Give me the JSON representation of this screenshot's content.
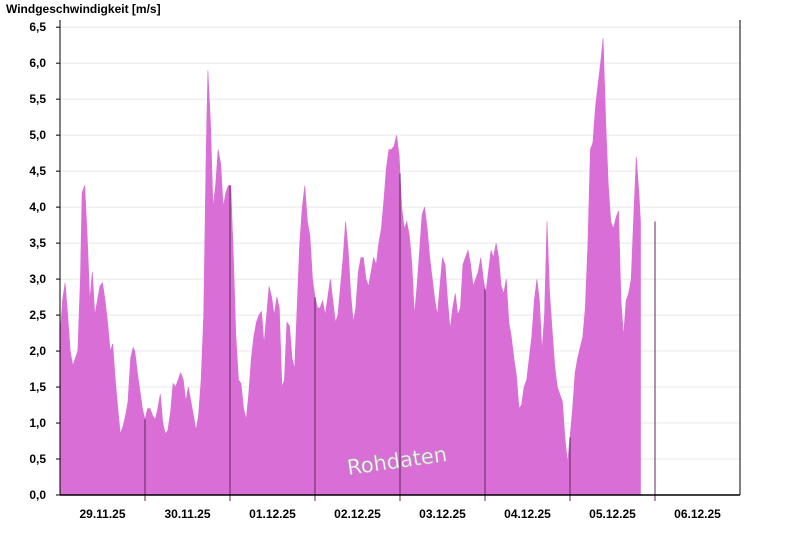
{
  "chart_data": {
    "type": "area",
    "title": "Windgeschwindigkeit [m/s]",
    "watermark": "Rohdaten",
    "fill_color": "#d96fd6",
    "grid_color": "#e8e8e8",
    "ylim": [
      0,
      6.6
    ],
    "y_ticks": [
      {
        "value": 0,
        "label": "0,0"
      },
      {
        "value": 0.5,
        "label": "0,5"
      },
      {
        "value": 1.0,
        "label": "1,0"
      },
      {
        "value": 1.5,
        "label": "1,5"
      },
      {
        "value": 2.0,
        "label": "2,0"
      },
      {
        "value": 2.5,
        "label": "2,5"
      },
      {
        "value": 3.0,
        "label": "3,0"
      },
      {
        "value": 3.5,
        "label": "3,5"
      },
      {
        "value": 4.0,
        "label": "4,0"
      },
      {
        "value": 4.5,
        "label": "4,5"
      },
      {
        "value": 5.0,
        "label": "5,0"
      },
      {
        "value": 5.5,
        "label": "5,5"
      },
      {
        "value": 6.0,
        "label": "6,0"
      },
      {
        "value": 6.5,
        "label": "6,5"
      }
    ],
    "days": [
      "29.11.25",
      "30.11.25",
      "01.12.25",
      "02.12.25",
      "03.12.25",
      "04.12.25",
      "05.12.25",
      "06.12.25"
    ],
    "x_range": [
      0,
      8
    ],
    "points": [
      [
        0.0,
        2.2
      ],
      [
        0.03,
        2.7
      ],
      [
        0.06,
        2.95
      ],
      [
        0.09,
        2.5
      ],
      [
        0.12,
        2.0
      ],
      [
        0.15,
        1.8
      ],
      [
        0.18,
        1.9
      ],
      [
        0.21,
        2.0
      ],
      [
        0.24,
        3.0
      ],
      [
        0.26,
        4.2
      ],
      [
        0.29,
        4.3
      ],
      [
        0.32,
        3.6
      ],
      [
        0.35,
        2.7
      ],
      [
        0.38,
        3.1
      ],
      [
        0.41,
        2.5
      ],
      [
        0.44,
        2.7
      ],
      [
        0.47,
        2.9
      ],
      [
        0.5,
        2.95
      ],
      [
        0.53,
        2.7
      ],
      [
        0.56,
        2.4
      ],
      [
        0.59,
        2.0
      ],
      [
        0.62,
        2.1
      ],
      [
        0.65,
        1.6
      ],
      [
        0.68,
        1.2
      ],
      [
        0.71,
        0.85
      ],
      [
        0.74,
        0.95
      ],
      [
        0.77,
        1.1
      ],
      [
        0.8,
        1.3
      ],
      [
        0.83,
        1.9
      ],
      [
        0.86,
        2.05
      ],
      [
        0.88,
        2.0
      ],
      [
        0.91,
        1.7
      ],
      [
        0.94,
        1.45
      ],
      [
        0.97,
        1.2
      ],
      [
        1.0,
        1.05
      ],
      [
        1.03,
        1.2
      ],
      [
        1.06,
        1.2
      ],
      [
        1.09,
        1.1
      ],
      [
        1.12,
        1.05
      ],
      [
        1.15,
        1.2
      ],
      [
        1.18,
        1.4
      ],
      [
        1.21,
        1.0
      ],
      [
        1.24,
        0.85
      ],
      [
        1.27,
        0.9
      ],
      [
        1.3,
        1.15
      ],
      [
        1.33,
        1.55
      ],
      [
        1.36,
        1.5
      ],
      [
        1.39,
        1.6
      ],
      [
        1.42,
        1.7
      ],
      [
        1.45,
        1.6
      ],
      [
        1.48,
        1.3
      ],
      [
        1.51,
        1.5
      ],
      [
        1.54,
        1.3
      ],
      [
        1.57,
        1.1
      ],
      [
        1.6,
        0.9
      ],
      [
        1.63,
        1.1
      ],
      [
        1.66,
        1.6
      ],
      [
        1.69,
        2.5
      ],
      [
        1.72,
        4.8
      ],
      [
        1.74,
        5.9
      ],
      [
        1.77,
        5.2
      ],
      [
        1.8,
        4.0
      ],
      [
        1.83,
        4.3
      ],
      [
        1.86,
        4.8
      ],
      [
        1.89,
        4.6
      ],
      [
        1.92,
        4.0
      ],
      [
        1.95,
        4.2
      ],
      [
        1.98,
        4.3
      ],
      [
        2.01,
        4.3
      ],
      [
        2.04,
        3.3
      ],
      [
        2.07,
        2.2
      ],
      [
        2.1,
        1.6
      ],
      [
        2.13,
        1.55
      ],
      [
        2.16,
        1.2
      ],
      [
        2.19,
        1.05
      ],
      [
        2.22,
        1.4
      ],
      [
        2.25,
        1.9
      ],
      [
        2.28,
        2.2
      ],
      [
        2.31,
        2.4
      ],
      [
        2.34,
        2.5
      ],
      [
        2.37,
        2.55
      ],
      [
        2.4,
        2.1
      ],
      [
        2.43,
        2.5
      ],
      [
        2.46,
        2.9
      ],
      [
        2.49,
        2.75
      ],
      [
        2.52,
        2.5
      ],
      [
        2.55,
        2.75
      ],
      [
        2.58,
        2.6
      ],
      [
        2.61,
        1.5
      ],
      [
        2.64,
        1.6
      ],
      [
        2.67,
        2.4
      ],
      [
        2.7,
        2.35
      ],
      [
        2.73,
        1.9
      ],
      [
        2.76,
        1.75
      ],
      [
        2.79,
        2.6
      ],
      [
        2.82,
        3.5
      ],
      [
        2.85,
        4.0
      ],
      [
        2.88,
        4.3
      ],
      [
        2.91,
        3.8
      ],
      [
        2.94,
        3.6
      ],
      [
        2.97,
        3.0
      ],
      [
        3.0,
        2.75
      ],
      [
        3.03,
        2.6
      ],
      [
        3.06,
        2.6
      ],
      [
        3.09,
        2.7
      ],
      [
        3.12,
        2.5
      ],
      [
        3.15,
        2.75
      ],
      [
        3.18,
        3.0
      ],
      [
        3.21,
        2.7
      ],
      [
        3.24,
        2.4
      ],
      [
        3.27,
        2.5
      ],
      [
        3.3,
        2.9
      ],
      [
        3.33,
        3.3
      ],
      [
        3.36,
        3.8
      ],
      [
        3.39,
        3.4
      ],
      [
        3.42,
        2.8
      ],
      [
        3.45,
        2.4
      ],
      [
        3.48,
        2.6
      ],
      [
        3.51,
        3.1
      ],
      [
        3.54,
        3.3
      ],
      [
        3.57,
        3.3
      ],
      [
        3.6,
        3.0
      ],
      [
        3.63,
        2.9
      ],
      [
        3.66,
        3.1
      ],
      [
        3.69,
        3.3
      ],
      [
        3.72,
        3.2
      ],
      [
        3.75,
        3.5
      ],
      [
        3.78,
        3.7
      ],
      [
        3.81,
        4.1
      ],
      [
        3.84,
        4.55
      ],
      [
        3.87,
        4.8
      ],
      [
        3.9,
        4.8
      ],
      [
        3.93,
        4.85
      ],
      [
        3.96,
        5.0
      ],
      [
        3.99,
        4.7
      ],
      [
        4.02,
        4.0
      ],
      [
        4.05,
        3.7
      ],
      [
        4.08,
        3.8
      ],
      [
        4.11,
        3.6
      ],
      [
        4.14,
        3.2
      ],
      [
        4.17,
        2.5
      ],
      [
        4.2,
        2.9
      ],
      [
        4.23,
        3.4
      ],
      [
        4.26,
        3.9
      ],
      [
        4.29,
        4.0
      ],
      [
        4.32,
        3.7
      ],
      [
        4.35,
        3.3
      ],
      [
        4.38,
        3.0
      ],
      [
        4.41,
        2.7
      ],
      [
        4.44,
        2.5
      ],
      [
        4.47,
        2.9
      ],
      [
        4.5,
        3.3
      ],
      [
        4.53,
        3.2
      ],
      [
        4.56,
        2.7
      ],
      [
        4.59,
        2.3
      ],
      [
        4.62,
        2.6
      ],
      [
        4.65,
        2.8
      ],
      [
        4.68,
        2.5
      ],
      [
        4.71,
        2.6
      ],
      [
        4.74,
        3.2
      ],
      [
        4.77,
        3.3
      ],
      [
        4.8,
        3.4
      ],
      [
        4.83,
        3.2
      ],
      [
        4.86,
        2.9
      ],
      [
        4.89,
        3.0
      ],
      [
        4.92,
        3.1
      ],
      [
        4.95,
        3.3
      ],
      [
        4.98,
        3.0
      ],
      [
        5.01,
        2.8
      ],
      [
        5.04,
        3.1
      ],
      [
        5.07,
        3.4
      ],
      [
        5.1,
        3.3
      ],
      [
        5.13,
        3.5
      ],
      [
        5.16,
        3.3
      ],
      [
        5.19,
        2.9
      ],
      [
        5.22,
        2.8
      ],
      [
        5.25,
        3.0
      ],
      [
        5.28,
        2.4
      ],
      [
        5.31,
        2.2
      ],
      [
        5.34,
        1.9
      ],
      [
        5.37,
        1.65
      ],
      [
        5.4,
        1.2
      ],
      [
        5.43,
        1.25
      ],
      [
        5.46,
        1.5
      ],
      [
        5.49,
        1.6
      ],
      [
        5.52,
        1.9
      ],
      [
        5.55,
        2.2
      ],
      [
        5.58,
        2.7
      ],
      [
        5.61,
        3.0
      ],
      [
        5.64,
        2.7
      ],
      [
        5.67,
        2.0
      ],
      [
        5.7,
        2.5
      ],
      [
        5.73,
        3.8
      ],
      [
        5.76,
        2.8
      ],
      [
        5.79,
        2.3
      ],
      [
        5.82,
        1.8
      ],
      [
        5.85,
        1.5
      ],
      [
        5.88,
        1.4
      ],
      [
        5.91,
        1.3
      ],
      [
        5.94,
        0.8
      ],
      [
        5.97,
        0.45
      ],
      [
        6.0,
        0.8
      ],
      [
        6.03,
        1.2
      ],
      [
        6.06,
        1.7
      ],
      [
        6.09,
        1.9
      ],
      [
        6.12,
        2.05
      ],
      [
        6.15,
        2.2
      ],
      [
        6.18,
        2.6
      ],
      [
        6.21,
        3.5
      ],
      [
        6.24,
        4.8
      ],
      [
        6.27,
        4.9
      ],
      [
        6.3,
        5.4
      ],
      [
        6.33,
        5.7
      ],
      [
        6.36,
        6.0
      ],
      [
        6.39,
        6.35
      ],
      [
        6.42,
        5.2
      ],
      [
        6.45,
        4.3
      ],
      [
        6.48,
        3.8
      ],
      [
        6.51,
        3.7
      ],
      [
        6.54,
        3.85
      ],
      [
        6.57,
        3.95
      ],
      [
        6.6,
        2.7
      ],
      [
        6.63,
        2.2
      ],
      [
        6.66,
        2.7
      ],
      [
        6.69,
        2.8
      ],
      [
        6.72,
        3.0
      ],
      [
        6.75,
        3.9
      ],
      [
        6.78,
        4.7
      ],
      [
        6.81,
        4.2
      ],
      [
        6.83,
        3.8
      ]
    ]
  }
}
